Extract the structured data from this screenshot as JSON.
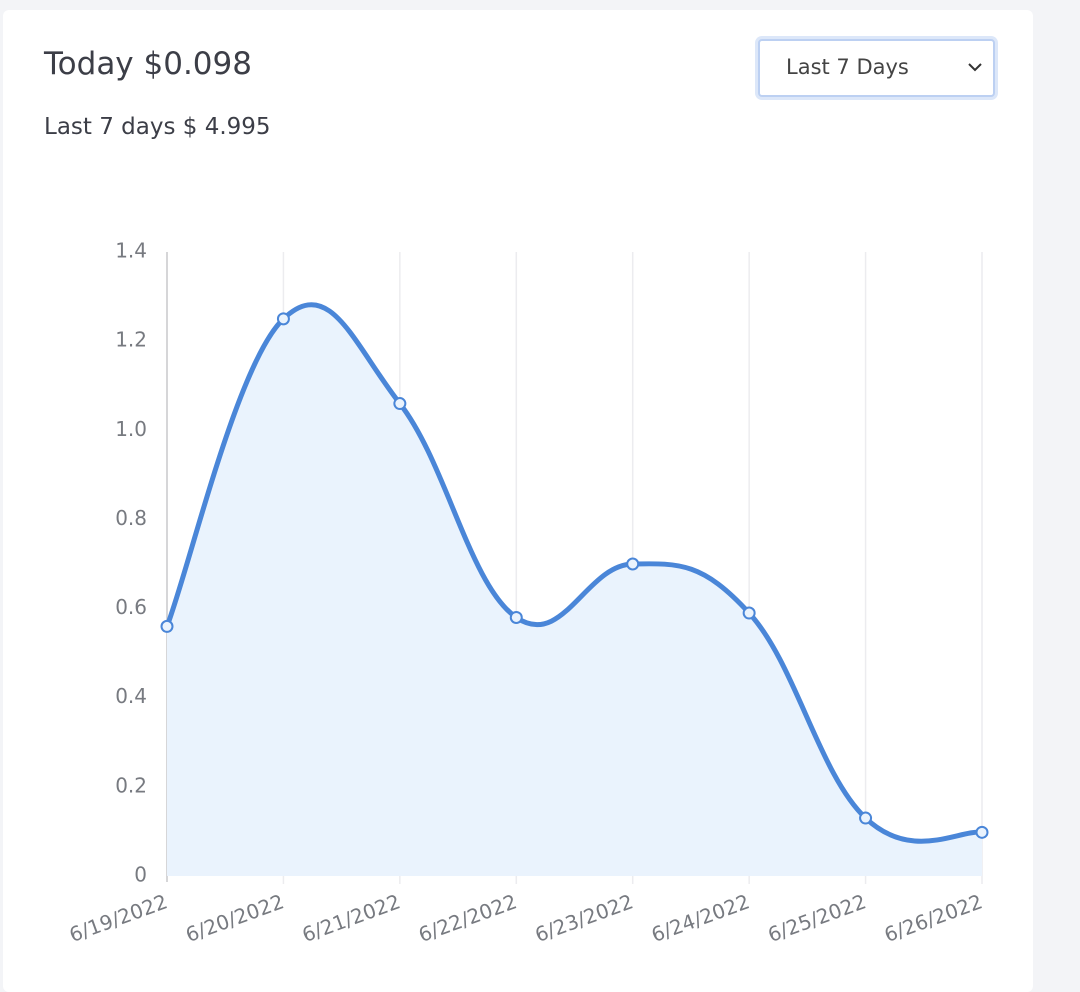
{
  "header": {
    "today": "Today $0.098",
    "week": "Last 7 days $ 4.995",
    "range_select": "Last 7 Days"
  },
  "chart_data": {
    "type": "line",
    "categories": [
      "6/19/2022",
      "6/20/2022",
      "6/21/2022",
      "6/22/2022",
      "6/23/2022",
      "6/24/2022",
      "6/25/2022",
      "6/26/2022"
    ],
    "values": [
      0.56,
      1.25,
      1.06,
      0.58,
      0.7,
      0.59,
      0.13,
      0.098
    ],
    "color": "#4a86d8",
    "fill": "#eaf3fd",
    "ylim": [
      0,
      1.4
    ],
    "yticks": [
      0,
      0.2,
      0.4,
      0.6,
      0.8,
      {
        "value": 1,
        "label": "1.0"
      },
      1.2,
      1.4
    ]
  }
}
